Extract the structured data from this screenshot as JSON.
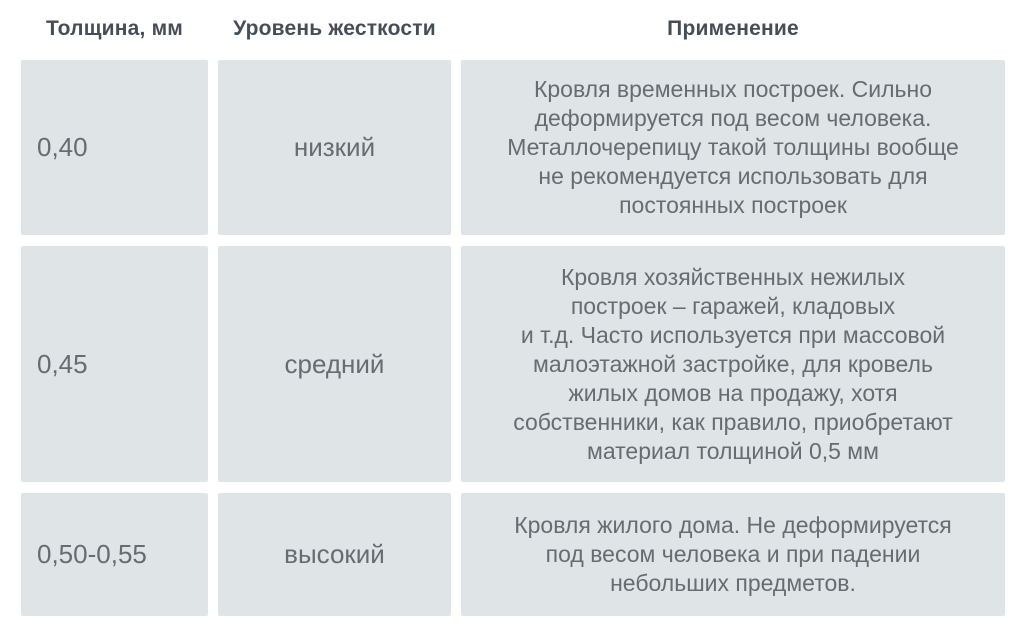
{
  "chart_data": {
    "type": "table",
    "title": "",
    "columns": [
      "Толщина, мм",
      "Уровень жесткости",
      "Применение"
    ],
    "rows": [
      {
        "thickness": "0,40",
        "stiffness": "низкий",
        "application": "Кровля временных построек. Сильно\nдеформируется под весом человека.\nМеталлочерепицу такой толщины вообще\nне рекомендуется использовать для\nпостоянных построек"
      },
      {
        "thickness": "0,45",
        "stiffness": "средний",
        "application": "Кровля хозяйственных нежилых\nпостроек – гаражей, кладовых\nи т.д. Часто используется при массовой\nмалоэтажной застройке, для кровель\nжилых домов на продажу, хотя\nсобственники, как правило, приобретают\nматериал толщиной 0,5 мм"
      },
      {
        "thickness": "0,50-0,55",
        "stiffness": "высокий",
        "application": "Кровля жилого дома. Не деформируется\nпод весом человека и при падении\nнебольших предметов."
      }
    ]
  },
  "colors": {
    "page_background": "#ffffff",
    "cell_background": "#dfe4e6",
    "body_text": "#666c72",
    "header_text": "#454e57"
  }
}
